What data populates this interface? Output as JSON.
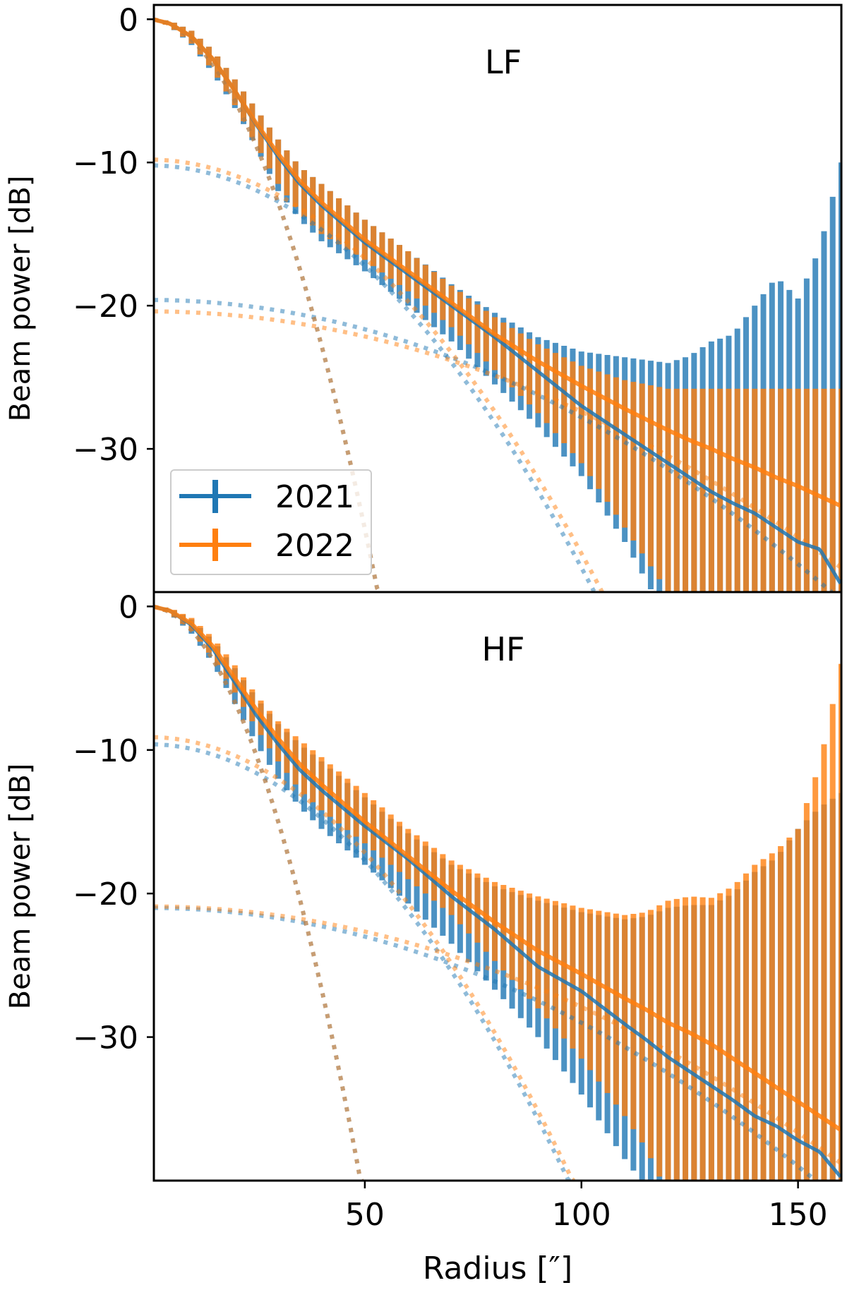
{
  "chart_data": {
    "type": "line",
    "shared_x": {
      "label": "Radius [″]",
      "lim": [
        1.3,
        160
      ],
      "ticks": [
        50,
        100,
        150
      ],
      "tick_labels": [
        "50",
        "100",
        "150"
      ]
    },
    "legend": {
      "placement": "lower-left of top panel",
      "entries": [
        "2021",
        "2022"
      ]
    },
    "colors": {
      "2021": "#1f77b4",
      "2022": "#ff7f0e"
    },
    "error_bar_spacing": 2,
    "panels": [
      {
        "title": "LF",
        "ylabel": "Beam power [dB]",
        "ylim": [
          -40,
          1
        ],
        "yticks": [
          0,
          -10,
          -20,
          -30
        ],
        "ytick_labels": [
          "0",
          "−10",
          "−20",
          "−30"
        ],
        "x": [
          1,
          5,
          10,
          15,
          20,
          25,
          30,
          35,
          40,
          50,
          60,
          70,
          80,
          90,
          100,
          110,
          120,
          125,
          130,
          135,
          140,
          145,
          150,
          155,
          160
        ],
        "series": [
          {
            "name": "2021",
            "y": [
              0,
              -0.3,
              -1.2,
              -2.8,
              -5,
              -7.4,
              -9.6,
              -11.5,
              -13,
              -15.6,
              -17.8,
              -20,
              -22.2,
              -24.6,
              -27,
              -29,
              -31,
              -32,
              -33,
              -33.8,
              -34.5,
              -35.5,
              -36.5,
              -37,
              -39.5
            ],
            "upper": [
              0,
              -0.1,
              -0.8,
              -2.2,
              -4.2,
              -6.3,
              -8.4,
              -10.3,
              -11.5,
              -14,
              -16.2,
              -18.5,
              -20.5,
              -22.2,
              -23.2,
              -23.6,
              -24,
              -23.5,
              -22.5,
              -22,
              -20,
              -18,
              -19.5,
              -16,
              -10
            ],
            "lower": [
              0,
              -0.5,
              -1.8,
              -3.8,
              -6.2,
              -9,
              -12,
              -14,
              -15.5,
              -17.6,
              -20,
              -22.5,
              -25.5,
              -28.5,
              -31.9,
              -36.5,
              -42,
              -45,
              -45,
              -45,
              -45,
              -45,
              -45,
              -45,
              -45
            ]
          },
          {
            "name": "2022",
            "y": [
              0,
              -0.3,
              -1.2,
              -2.8,
              -5,
              -7.3,
              -9.4,
              -11.3,
              -12.8,
              -15.4,
              -17.6,
              -19.8,
              -22,
              -23.9,
              -25.6,
              -27.2,
              -28.7,
              -29.4,
              -30,
              -30.7,
              -31.3,
              -32,
              -32.6,
              -33.3,
              -34
            ],
            "upper": [
              0,
              -0.1,
              -0.8,
              -2.2,
              -4.2,
              -6.3,
              -8.4,
              -10.3,
              -11.5,
              -14,
              -16.2,
              -18.6,
              -20.8,
              -22.7,
              -24.2,
              -25.2,
              -25.8,
              -25.8,
              -25.8,
              -25.8,
              -25.8,
              -25.8,
              -25.8,
              -25.8,
              -25.8
            ],
            "lower": [
              0,
              -0.5,
              -1.7,
              -3.6,
              -6,
              -8.8,
              -11.5,
              -13.5,
              -15,
              -16.8,
              -19,
              -21.5,
              -24.5,
              -27.5,
              -31,
              -35.5,
              -40,
              -45,
              -45,
              -45,
              -45,
              -45,
              -45,
              -45,
              -45
            ]
          }
        ],
        "beam_models": [
          {
            "series": "2021",
            "components": [
              {
                "peak": 0,
                "curv": 0.01424
              },
              {
                "peak": -10.2,
                "curv": 0.00281
              },
              {
                "peak": -19.6,
                "curv": 0.00082
              }
            ]
          },
          {
            "series": "2022",
            "components": [
              {
                "peak": 0,
                "curv": 0.01424
              },
              {
                "peak": -9.8,
                "curv": 0.00275
              },
              {
                "peak": -20.4,
                "curv": 0.0007
              }
            ]
          }
        ]
      },
      {
        "title": "HF",
        "ylabel": "Beam power [dB]",
        "ylim": [
          -40,
          1
        ],
        "yticks": [
          0,
          -10,
          -20,
          -30
        ],
        "ytick_labels": [
          "0",
          "−10",
          "−20",
          "−30"
        ],
        "x": [
          1,
          5,
          10,
          15,
          20,
          25,
          30,
          35,
          40,
          50,
          60,
          70,
          80,
          90,
          100,
          110,
          115,
          120,
          125,
          130,
          135,
          140,
          145,
          150,
          155,
          160
        ],
        "series": [
          {
            "name": "2021",
            "y": [
              0,
              -0.3,
              -1.3,
              -3,
              -5.3,
              -7.6,
              -9.6,
              -11.4,
              -12.8,
              -15.3,
              -17.6,
              -20.2,
              -22.5,
              -25.1,
              -26.8,
              -29.1,
              -30.2,
              -31.4,
              -32.4,
              -33.4,
              -34.4,
              -35.5,
              -36.2,
              -37.2,
              -38,
              -39.8
            ],
            "upper": [
              0,
              -0.1,
              -0.9,
              -2.4,
              -4.3,
              -6.4,
              -8.2,
              -9.6,
              -10.8,
              -13.3,
              -15.8,
              -18,
              -19.5,
              -20.5,
              -21.3,
              -21.8,
              -21.6,
              -21,
              -20.8,
              -20.8,
              -20,
              -18.5,
              -17.5,
              -15.5,
              -14,
              -13
            ],
            "lower": [
              0,
              -0.5,
              -1.9,
              -4,
              -6.8,
              -9.6,
              -12,
              -14,
              -15.5,
              -18,
              -20.7,
              -23.5,
              -26.7,
              -30,
              -34,
              -38.5,
              -40.5,
              -45,
              -45,
              -45,
              -45,
              -45,
              -45,
              -45,
              -45,
              -45
            ]
          },
          {
            "name": "2022",
            "y": [
              0,
              -0.3,
              -1.2,
              -2.8,
              -5,
              -7.2,
              -9.2,
              -11,
              -12.4,
              -15,
              -17.4,
              -19.8,
              -22,
              -24,
              -25.6,
              -27.3,
              -28.1,
              -29,
              -29.7,
              -30.5,
              -31.5,
              -32.5,
              -33.5,
              -34.5,
              -35.5,
              -36.5
            ],
            "upper": [
              0,
              -0.1,
              -0.8,
              -2.2,
              -4.1,
              -6.2,
              -8,
              -9.3,
              -10.5,
              -13,
              -15.5,
              -17.7,
              -19.2,
              -20.2,
              -21,
              -21.5,
              -21.3,
              -20.5,
              -20.2,
              -20.3,
              -19.5,
              -18,
              -17,
              -15.5,
              -11,
              -4
            ],
            "lower": [
              0,
              -0.5,
              -1.7,
              -3.6,
              -6,
              -8.5,
              -10.8,
              -12.8,
              -14.2,
              -16.5,
              -19,
              -21.5,
              -24.7,
              -28,
              -31.5,
              -35.5,
              -37.8,
              -41,
              -45,
              -45,
              -45,
              -45,
              -45,
              -45,
              -45,
              -45
            ]
          }
        ],
        "beam_models": [
          {
            "series": "2021",
            "components": [
              {
                "peak": 0,
                "curv": 0.01666
              },
              {
                "peak": -9.6,
                "curv": 0.00323
              },
              {
                "peak": -21,
                "curv": 0.0008
              }
            ]
          },
          {
            "series": "2022",
            "components": [
              {
                "peak": 0,
                "curv": 0.01666
              },
              {
                "peak": -9.1,
                "curv": 0.00322
              },
              {
                "peak": -20.9,
                "curv": 0.0007
              }
            ]
          }
        ]
      }
    ]
  }
}
